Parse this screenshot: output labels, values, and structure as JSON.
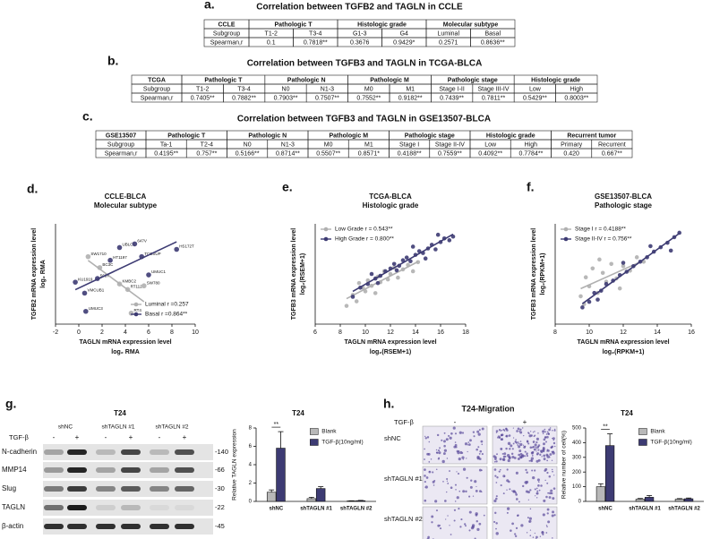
{
  "tables": [
    {
      "label": "a.",
      "title": "Correlation between TGFB2 and TAGLN in CCLE",
      "header": [
        "CCLE",
        "Pathologic T",
        "Histologic grade",
        "Molecular subtype"
      ],
      "subgroup": [
        "Subgroup",
        "T1-2",
        "T3-4",
        "G1-3",
        "G4",
        "Luminal",
        "Basal"
      ],
      "spearman": [
        "Spearman,r",
        "0.1",
        "0.7818**",
        "0.3676",
        "0.9429*",
        "0.2571",
        "0.8636**"
      ]
    },
    {
      "label": "b.",
      "title": "Correlation between TGFB3 and TAGLN in TCGA-BLCA",
      "header": [
        "TCGA",
        "Pathologic T",
        "Pathologic N",
        "Pathologic M",
        "Pathologic stage",
        "Histologic grade"
      ],
      "subgroup": [
        "Subgroup",
        "T1-2",
        "T3-4",
        "N0",
        "N1-3",
        "M0",
        "M1",
        "Stage I-II",
        "Stage III-IV",
        "Low",
        "High"
      ],
      "spearman": [
        "Spearman,r",
        "0.7405**",
        "0.7882**",
        "0.7903**",
        "0.7507**",
        "0.7552**",
        "0.9182**",
        "0.7439**",
        "0.7811**",
        "0.5429**",
        "0.8003**"
      ]
    },
    {
      "label": "c.",
      "title": "Correlation between TGFB3 and TAGLN in GSE13507-BLCA",
      "header": [
        "GSE13507",
        "Pathologic T",
        "Pathologic N",
        "Pathologic M",
        "Pathologic stage",
        "Histologic grade",
        "Recurrent  tumor"
      ],
      "subgroup": [
        "Subgroup",
        "Ta-1",
        "T2-4",
        "N0",
        "N1-3",
        "M0",
        "M1",
        "Stage I",
        "Stage II-IV",
        "Low",
        "High",
        "Primary",
        "Recurrent"
      ],
      "spearman": [
        "Spearman,r",
        "0.4195**",
        "0.757**",
        "0.5166**",
        "0.8714**",
        "0.5507**",
        "0.8571*",
        "0.4188**",
        "0.7559**",
        "0.4092**",
        "0.7784**",
        "0.420",
        "0.667**"
      ]
    }
  ],
  "chart_data": [
    {
      "type": "scatter",
      "label": "d.",
      "title": "CCLE-BLCA",
      "subtitle": "Molecular subtype",
      "y_label": [
        "TGFB2  mRNA expression level",
        "log₂ RMA"
      ],
      "x_label": [
        "TAGLN mRNA expression level",
        "log₂ RMA"
      ],
      "xlim": [
        -2,
        10
      ],
      "xticks": [
        -2,
        0,
        2,
        4,
        6,
        8,
        10
      ],
      "ylim": [
        2.5,
        8
      ],
      "legend": "lower right",
      "series": [
        {
          "name": "Luminal  r =0.257",
          "color": "#b0b0b0",
          "x": [
            0.8,
            1.8,
            3.5,
            4.2,
            5.6,
            4.5
          ],
          "values": [
            6.2,
            5.6,
            4.7,
            4.4,
            4.6,
            3.1
          ],
          "point_labels": [
            "SW1710",
            "BC3C",
            "KMBC2",
            "RT112",
            "SW780",
            "RT4"
          ]
        },
        {
          "name": "Basal  r =0.864**",
          "color": "#3d3b73",
          "x": [
            3.5,
            4.8,
            2.7,
            5.4,
            8.4,
            -0.3,
            0.5,
            0.6,
            6.0,
            1.6
          ],
          "values": [
            6.7,
            6.9,
            6.0,
            6.2,
            6.6,
            4.8,
            4.2,
            3.2,
            5.2,
            5.0
          ],
          "point_labels": [
            "UBLC1",
            "647V",
            "HT1197",
            "TCCSUP",
            "HS172T",
            "KU1919",
            "VMCUB1",
            "UMUC3",
            "UMUC1",
            "5637"
          ]
        }
      ]
    },
    {
      "type": "scatter",
      "label": "e.",
      "title": "TCGA-BLCA",
      "subtitle": "Histologic grade",
      "y_label": [
        "TGFB3 mRNA expression level",
        "log₂(RSEM+1)"
      ],
      "x_label": [
        "TAGLN mRNA expression level",
        "log₂(RSEM+1)"
      ],
      "xlim": [
        6,
        18
      ],
      "xticks": [
        6,
        8,
        10,
        12,
        14,
        16,
        18
      ],
      "ylim": [
        1,
        12
      ],
      "legend": "upper left",
      "series": [
        {
          "name": "Low Grade  r = 0.543**",
          "color": "#b0b0b0",
          "x": [
            8.5,
            9,
            9.3,
            9.8,
            10,
            10.2,
            10.5,
            10.8,
            11,
            11.2,
            11.5,
            11.8,
            12,
            12.3,
            12.6,
            13,
            13.4,
            13.8,
            14.2,
            9.5
          ],
          "values": [
            3,
            4.2,
            3.5,
            5,
            4.6,
            5.8,
            5.2,
            4.4,
            6.2,
            5.6,
            6.8,
            5.9,
            6.5,
            7.2,
            6.1,
            7,
            7.5,
            6.8,
            7.8,
            5.5
          ]
        },
        {
          "name": "High Grade  r = 0.800**",
          "color": "#3d3b73",
          "x": [
            9,
            9.6,
            10.2,
            10.8,
            11.2,
            11.6,
            12,
            12.3,
            12.7,
            13,
            13.3,
            13.6,
            14,
            14.3,
            14.6,
            15,
            15.3,
            15.6,
            16,
            16.3,
            16.7,
            17,
            12.5,
            13.8,
            15.8,
            11,
            14.8,
            10.5
          ],
          "values": [
            4,
            5,
            5.4,
            6,
            6.3,
            6.8,
            7.1,
            7.6,
            7.4,
            8,
            8.3,
            7.9,
            8.6,
            9,
            8.8,
            9.3,
            9.7,
            9.2,
            10,
            10.4,
            10.2,
            10.6,
            6.9,
            9.5,
            10.8,
            5.5,
            8.2,
            6.5
          ]
        }
      ]
    },
    {
      "type": "scatter",
      "label": "f.",
      "title": "GSE13507-BLCA",
      "subtitle": "Pathologic stage",
      "y_label": [
        "TGFB3 mRNA expression level",
        "log₂(RPKM+1)"
      ],
      "x_label": [
        "TAGLN mRNA expression level",
        "log₂(RPKM+1)"
      ],
      "xlim": [
        8,
        16
      ],
      "xticks": [
        8,
        10,
        12,
        14,
        16
      ],
      "ylim": [
        4,
        13
      ],
      "legend": "upper left",
      "series": [
        {
          "name": "Stage I  r = 0.4188**",
          "color": "#b0b0b0",
          "x": [
            9.5,
            9.8,
            10,
            10.2,
            10.5,
            10.8,
            11,
            11.3,
            11.6,
            12,
            12.4,
            12.8,
            13.2,
            9.7,
            10.6,
            11.8
          ],
          "values": [
            6.5,
            8.2,
            7.4,
            9,
            6.8,
            8.6,
            7.8,
            9.4,
            8.1,
            9.2,
            8.8,
            10,
            9.6,
            5.8,
            9.8,
            7.2
          ]
        },
        {
          "name": "Stage II-IV  r = 0.756**",
          "color": "#3d3b73",
          "x": [
            9.6,
            10,
            10.3,
            10.7,
            11,
            11.4,
            11.8,
            12.2,
            12.6,
            13,
            13.4,
            13.8,
            14.2,
            14.6,
            15,
            15.3,
            10.5,
            12,
            13.6,
            14.8
          ],
          "values": [
            5.5,
            6,
            6.8,
            7,
            7.6,
            7.9,
            8.4,
            8.7,
            9.2,
            9.6,
            10,
            10.5,
            10.9,
            11.3,
            11.8,
            12.2,
            6.2,
            9.5,
            11,
            10.6
          ]
        }
      ]
    },
    {
      "type": "bar",
      "title": "T24",
      "y_label": "Relative TAGLN expression",
      "categories": [
        "shNC",
        "shTAGLN #1",
        "shTAGLN #2"
      ],
      "ylim": [
        0,
        8
      ],
      "yticks": [
        0,
        2,
        4,
        6,
        8
      ],
      "annotation": "**",
      "series": [
        {
          "name": "Blank",
          "color": "#b8b8b8",
          "values": [
            1,
            0.3,
            0.05
          ],
          "errors": [
            0.25,
            0.15,
            0.02
          ]
        },
        {
          "name": "TGF-β(10ng/ml)",
          "color": "#3d3b73",
          "values": [
            5.8,
            1.4,
            0.08
          ],
          "errors": [
            1.8,
            0.2,
            0.03
          ]
        }
      ]
    },
    {
      "type": "bar",
      "title": "T24",
      "y_label": "Relative number of cell(%)",
      "categories": [
        "shNC",
        "shTAGLN #1",
        "shTAGLN #2"
      ],
      "ylim": [
        0,
        500
      ],
      "yticks": [
        0,
        100,
        200,
        300,
        400,
        500
      ],
      "annotation": "**",
      "series": [
        {
          "name": "Blank",
          "color": "#b8b8b8",
          "values": [
            100,
            15,
            15
          ],
          "errors": [
            20,
            5,
            4
          ]
        },
        {
          "name": "TGF-β(10ng/ml)",
          "color": "#3d3b73",
          "values": [
            380,
            28,
            18
          ],
          "errors": [
            80,
            12,
            5
          ]
        }
      ]
    }
  ],
  "blot": {
    "label": "g.",
    "cell_line": "T24",
    "groups": [
      "shNC",
      "shTAGLN #1",
      "shTAGLN #2"
    ],
    "treatment_label": "TGF-β",
    "treatment_signs": [
      "-",
      "+",
      "-",
      "+",
      "-",
      "+"
    ],
    "proteins": [
      "N-cadherin",
      "MMP14",
      "Slug",
      "TAGLN",
      "β-actin"
    ],
    "sizes": [
      "-140",
      "-66",
      "-30",
      "-22",
      "-45"
    ]
  },
  "migration": {
    "label": "h.",
    "title": "T24-Migration",
    "treatment_label": "TGF-β",
    "treatment_signs": [
      "-",
      "+"
    ],
    "rows": [
      "shNC",
      "shTAGLN #1",
      "shTAGLN #2"
    ]
  }
}
